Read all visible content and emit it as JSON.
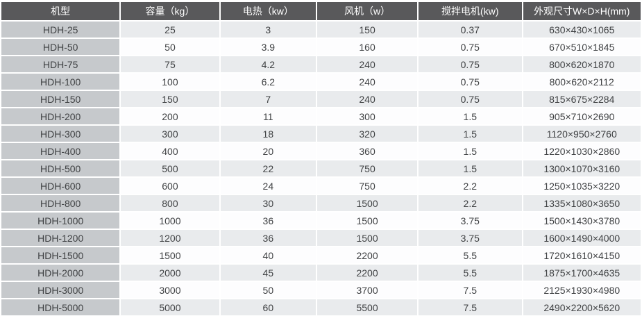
{
  "chart_data": {
    "type": "table",
    "columns": [
      "机型",
      "容量（kg）",
      "电热（kw）",
      "风机（w）",
      "搅拌电机(kw)",
      "外观尺寸W×D×H(mm)"
    ],
    "rows": [
      [
        "HDH-25",
        "25",
        "3",
        "150",
        "0.37",
        "630×430×1065"
      ],
      [
        "HDH-50",
        "50",
        "3.9",
        "160",
        "0.75",
        "670×510×1845"
      ],
      [
        "HDH-75",
        "75",
        "4.2",
        "240",
        "0.75",
        "800×620×1870"
      ],
      [
        "HDH-100",
        "100",
        "6.2",
        "240",
        "0.75",
        "800×620×2112"
      ],
      [
        "HDH-150",
        "150",
        "7",
        "240",
        "0.75",
        "815×675×2284"
      ],
      [
        "HDH-200",
        "200",
        "11",
        "300",
        "1.5",
        "905×710×2690"
      ],
      [
        "HDH-300",
        "300",
        "18",
        "320",
        "1.5",
        "1120×950×2760"
      ],
      [
        "HDH-400",
        "400",
        "20",
        "360",
        "1.5",
        "1220×1030×2860"
      ],
      [
        "HDH-500",
        "500",
        "22",
        "750",
        "1.5",
        "1300×1070×3160"
      ],
      [
        "HDH-600",
        "600",
        "24",
        "750",
        "2.2",
        "1250×1035×3220"
      ],
      [
        "HDH-800",
        "800",
        "30",
        "1500",
        "2.2",
        "1335×1080×3650"
      ],
      [
        "HDH-1000",
        "1000",
        "36",
        "1500",
        "3.75",
        "1500×1430×3780"
      ],
      [
        "HDH-1200",
        "1200",
        "36",
        "1500",
        "3.75",
        "1600×1490×4000"
      ],
      [
        "HDH-1500",
        "1500",
        "40",
        "2200",
        "5.5",
        "1720×1610×4150"
      ],
      [
        "HDH-2000",
        "2000",
        "45",
        "2200",
        "5.5",
        "1875×1700×4635"
      ],
      [
        "HDH-3000",
        "3000",
        "50",
        "3700",
        "7.5",
        "2125×1930×4980"
      ],
      [
        "HDH-5000",
        "5000",
        "60",
        "5500",
        "7.5",
        "2490×2200×5620"
      ]
    ],
    "column_widths_pct": [
      18.7,
      15.5,
      15.1,
      15.8,
      16.3,
      18.6
    ],
    "colors": {
      "header_bg": "#59595b",
      "header_text": "#ffffff",
      "model_column_bg": "#c6c9cc",
      "row_alt_bg": "#e9ebed",
      "row_bg": "#fdfdfe",
      "cell_text": "#3f4143",
      "separator": "#ffffff"
    }
  }
}
